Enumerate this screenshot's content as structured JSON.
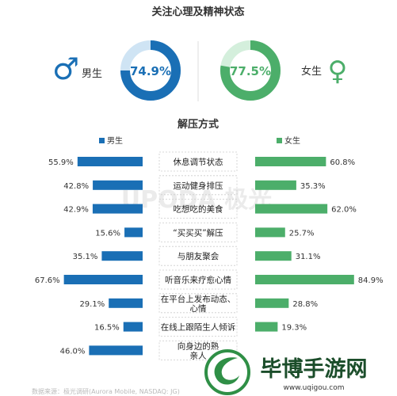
{
  "title": "关注心理及精神状态",
  "gender": {
    "male": {
      "label": "男生",
      "symbol": "♂",
      "percent_text": "74.9%",
      "value": 74.9,
      "color": "#1a6fb5"
    },
    "female": {
      "label": "女生",
      "symbol": "♀",
      "percent_text": "77.5%",
      "value": 77.5,
      "color": "#4cae6a"
    }
  },
  "colors": {
    "ring_bg_male": "#cfe4f4",
    "ring_bg_female": "#d4efdc",
    "divider": "#dddddd"
  },
  "chart_data": {
    "type": "bar",
    "title": "解压方式",
    "categories": [
      "休息调节状态",
      "运动健身排压",
      "吃想吃的美食",
      "“买买买”解压",
      "与朋友聚会",
      "听音乐来疗愈心情",
      "在平台上发布动态、心情",
      "在线上跟陌生人倾诉",
      "向身边的熟人、亲人"
    ],
    "category_lines": [
      [
        "休息调节状态"
      ],
      [
        "运动健身排压"
      ],
      [
        "吃想吃的美食"
      ],
      [
        "“买买买”解压"
      ],
      [
        "与朋友聚会"
      ],
      [
        "听音乐来疗愈心情"
      ],
      [
        "在平台上发布动态、",
        "心情"
      ],
      [
        "在线上跟陌生人倾诉"
      ],
      [
        "向身边的熟",
        "亲人"
      ]
    ],
    "series": [
      {
        "name": "男生",
        "color": "#1a6fb5",
        "values": [
          55.9,
          42.8,
          42.9,
          15.6,
          35.1,
          67.6,
          29.1,
          16.5,
          46.0
        ],
        "labels": [
          "55.9%",
          "42.8%",
          "42.9%",
          "15.6%",
          "35.1%",
          "67.6%",
          "29.1%",
          "16.5%",
          "46.0%"
        ]
      },
      {
        "name": "女生",
        "color": "#4cae6a",
        "values": [
          60.8,
          35.3,
          62.0,
          25.7,
          31.1,
          84.9,
          28.8,
          19.3,
          null
        ],
        "labels": [
          "60.8%",
          "35.3%",
          "62.0%",
          "25.7%",
          "31.1%",
          "84.9%",
          "28.8%",
          "19.3%",
          ""
        ]
      }
    ]
  },
  "watermark": {
    "text": "UPODA 极光"
  },
  "source_note": "数据来源：极光调研(Aurora Mobile, NASDAQ: JG)",
  "brand": {
    "name": "毕博手游网",
    "url": "www.uqigou.com"
  }
}
